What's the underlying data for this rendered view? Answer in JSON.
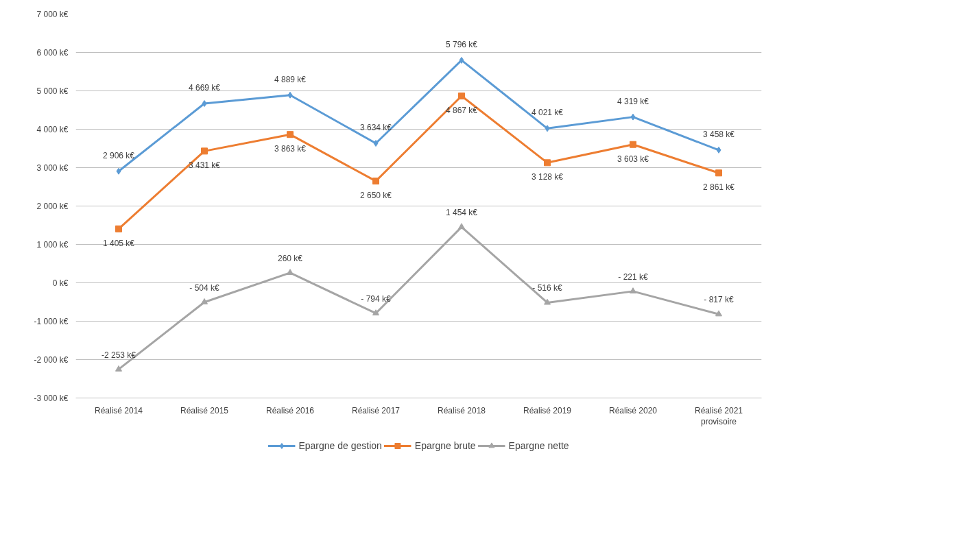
{
  "chart_data": {
    "type": "line",
    "categories": [
      "Réalisé 2014",
      "Réalisé 2015",
      "Réalisé 2016",
      "Réalisé 2017",
      "Réalisé 2018",
      "Réalisé 2019",
      "Réalisé 2020",
      "Réalisé 2021\nprovisoire"
    ],
    "series": [
      {
        "name": "Epargne de gestion",
        "color": "#5b9bd5",
        "marker": "diamond",
        "values": [
          2906,
          4669,
          4889,
          3634,
          5796,
          4021,
          4319,
          3458
        ],
        "value_labels": [
          "2 906 k€",
          "4 669 k€",
          "4 889 k€",
          "3 634 k€",
          "5 796 k€",
          "4 021 k€",
          "4 319 k€",
          "3 458 k€"
        ]
      },
      {
        "name": "Epargne brute",
        "color": "#ed7d31",
        "marker": "square",
        "values": [
          1405,
          3431,
          3863,
          2650,
          4867,
          3128,
          3603,
          2861
        ],
        "value_labels": [
          "1 405 k€",
          "3 431 k€",
          "3 863 k€",
          "2 650 k€",
          "4 867 k€",
          "3 128 k€",
          "3 603 k€",
          "2 861 k€"
        ]
      },
      {
        "name": "Epargne nette",
        "color": "#a5a5a5",
        "marker": "triangle",
        "values": [
          -2253,
          -504,
          260,
          -794,
          1454,
          -516,
          -221,
          -817
        ],
        "value_labels": [
          "-2 253 k€",
          "- 504 k€",
          "260 k€",
          "- 794 k€",
          "1 454 k€",
          "- 516 k€",
          "- 221 k€",
          "- 817 k€"
        ]
      }
    ],
    "ylim": [
      -3000,
      7000
    ],
    "yticks": [
      {
        "value": -3000,
        "label": "-3 000 k€"
      },
      {
        "value": -2000,
        "label": "-2 000 k€"
      },
      {
        "value": -1000,
        "label": "-1 000 k€"
      },
      {
        "value": 0,
        "label": "0 k€"
      },
      {
        "value": 1000,
        "label": "1 000 k€"
      },
      {
        "value": 2000,
        "label": "2 000 k€"
      },
      {
        "value": 3000,
        "label": "3 000 k€"
      },
      {
        "value": 4000,
        "label": "4 000 k€"
      },
      {
        "value": 5000,
        "label": "5 000 k€"
      },
      {
        "value": 6000,
        "label": "6 000 k€"
      },
      {
        "value": 7000,
        "label": "7 000 k€"
      }
    ],
    "grid": "y",
    "legend": "bottom",
    "line_style": "solid"
  }
}
